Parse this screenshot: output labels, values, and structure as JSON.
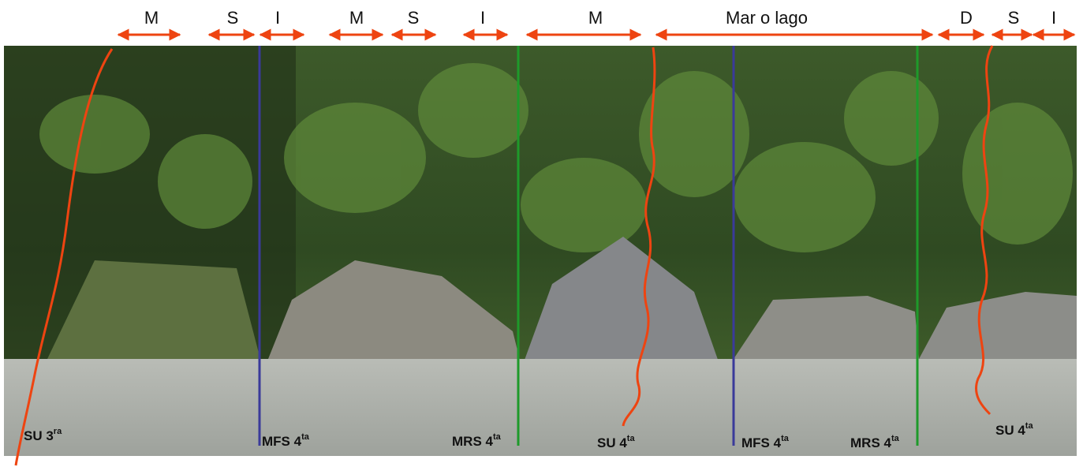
{
  "intervals": [
    {
      "label": "M"
    },
    {
      "label": "S"
    },
    {
      "label": "I"
    },
    {
      "label": "M"
    },
    {
      "label": "S"
    },
    {
      "label": "I"
    },
    {
      "label": "M"
    },
    {
      "label": "Mar o lago"
    },
    {
      "label": "D"
    },
    {
      "label": "S"
    },
    {
      "label": "I"
    }
  ],
  "surfaces": [
    {
      "label": "SU 3",
      "sup": "ra"
    },
    {
      "label": "MFS 4",
      "sup": "ta"
    },
    {
      "label": "MRS 4",
      "sup": "ta"
    },
    {
      "label": "SU 4",
      "sup": "ta"
    },
    {
      "label": "MFS 4",
      "sup": "ta"
    },
    {
      "label": "MRS 4",
      "sup": "ta"
    },
    {
      "label": "SU 4",
      "sup": "ta"
    }
  ]
}
